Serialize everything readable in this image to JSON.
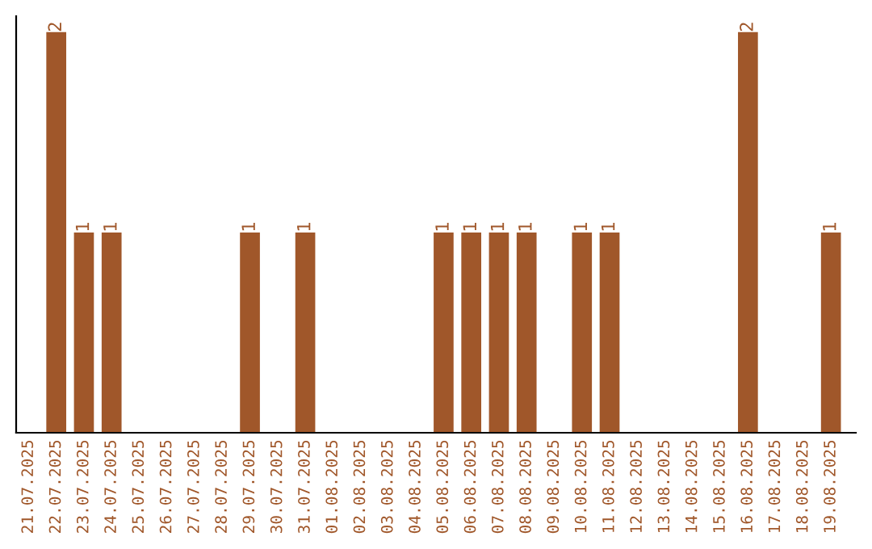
{
  "chart_data": {
    "type": "bar",
    "categories": [
      "21.07.2025",
      "22.07.2025",
      "23.07.2025",
      "24.07.2025",
      "25.07.2025",
      "26.07.2025",
      "27.07.2025",
      "28.07.2025",
      "29.07.2025",
      "30.07.2025",
      "31.07.2025",
      "01.08.2025",
      "02.08.2025",
      "03.08.2025",
      "04.08.2025",
      "05.08.2025",
      "06.08.2025",
      "07.08.2025",
      "08.08.2025",
      "09.08.2025",
      "10.08.2025",
      "11.08.2025",
      "12.08.2025",
      "13.08.2025",
      "14.08.2025",
      "15.08.2025",
      "16.08.2025",
      "17.08.2025",
      "18.08.2025",
      "19.08.2025"
    ],
    "values": [
      0,
      2,
      1,
      1,
      0,
      0,
      0,
      0,
      1,
      0,
      1,
      0,
      0,
      0,
      0,
      1,
      1,
      1,
      1,
      0,
      1,
      1,
      0,
      0,
      0,
      0,
      2,
      0,
      0,
      1
    ],
    "value_labels": [
      null,
      "2",
      "1",
      "1",
      null,
      null,
      null,
      null,
      "1",
      null,
      "1",
      null,
      null,
      null,
      null,
      "1",
      "1",
      "1",
      "1",
      null,
      "1",
      "1",
      null,
      null,
      null,
      null,
      "2",
      null,
      null,
      "1"
    ],
    "color": "#a0572a",
    "ylim": [
      0,
      2.08
    ],
    "tick_labels": "x",
    "grid": false,
    "legend": false
  }
}
